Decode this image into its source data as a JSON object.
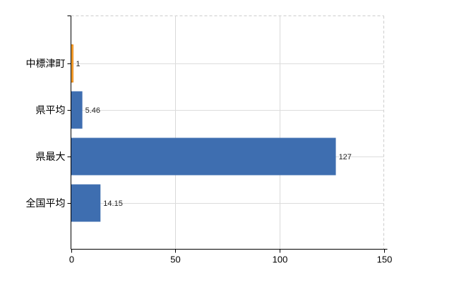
{
  "chart_data": {
    "type": "bar",
    "orientation": "horizontal",
    "title": "",
    "xlabel": "",
    "ylabel": "",
    "categories": [
      "中標津町",
      "県平均",
      "県最大",
      "全国平均"
    ],
    "values": [
      1,
      5.46,
      127,
      14.15
    ],
    "value_labels": [
      "1",
      "5.46",
      "127",
      "14.15"
    ],
    "xlim": [
      0,
      150
    ],
    "xticks": [
      0,
      50,
      100,
      150
    ],
    "xtick_labels": [
      "0",
      "50",
      "100",
      "150"
    ],
    "grid": true,
    "legend": false,
    "bar_colors": [
      "#f9a431",
      "#3e6eb0",
      "#3e6eb0",
      "#3e6eb0"
    ],
    "bar_border_colors": [
      "#e0810f",
      "none",
      "none",
      "none"
    ],
    "colors": {
      "highlight_bar": "#f9a431",
      "highlight_bar_border": "#e0810f",
      "default_bar": "#3e6eb0",
      "vertical_gridline": "#d9d9d9",
      "category_gridline": "#dcdcdc",
      "plot_border_dashed": "#cccccc",
      "axis": "#000000",
      "category_label_text": "#000000",
      "tick_label_text": "#000000",
      "value_label_text": "#222222",
      "background": "#ffffff"
    }
  }
}
